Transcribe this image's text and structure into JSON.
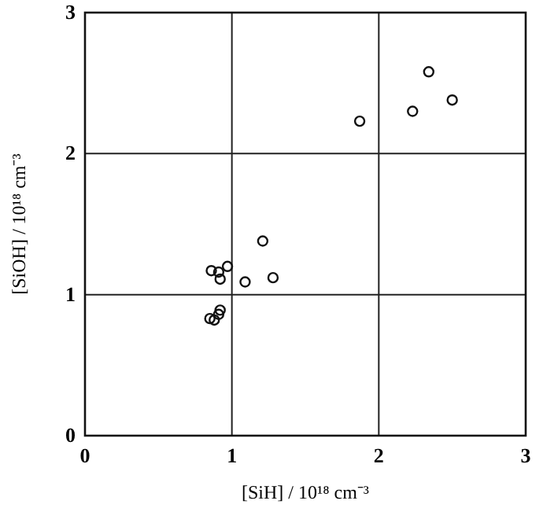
{
  "chart_data": {
    "type": "scatter",
    "xlabel": "[SiH] / 10¹⁸ cm⁻³",
    "ylabel": "[SiOH] / 10¹⁸ cm⁻³",
    "x": [
      2.34,
      2.5,
      2.23,
      1.87,
      1.21,
      1.28,
      1.09,
      0.97,
      0.91,
      0.86,
      0.92,
      0.92,
      0.91,
      0.85,
      0.88
    ],
    "series": [
      {
        "color": "#111111",
        "values": [
          2.58,
          2.38,
          2.3,
          2.23,
          1.38,
          1.12,
          1.09,
          1.2,
          1.16,
          1.17,
          1.11,
          0.89,
          0.86,
          0.83,
          0.82
        ]
      }
    ],
    "xlim": [
      0,
      3
    ],
    "ylim": [
      0,
      3
    ],
    "xticks": [
      0,
      1,
      2,
      3
    ],
    "yticks": [
      0,
      1,
      2,
      3
    ],
    "grid": true,
    "marker": "circle"
  }
}
